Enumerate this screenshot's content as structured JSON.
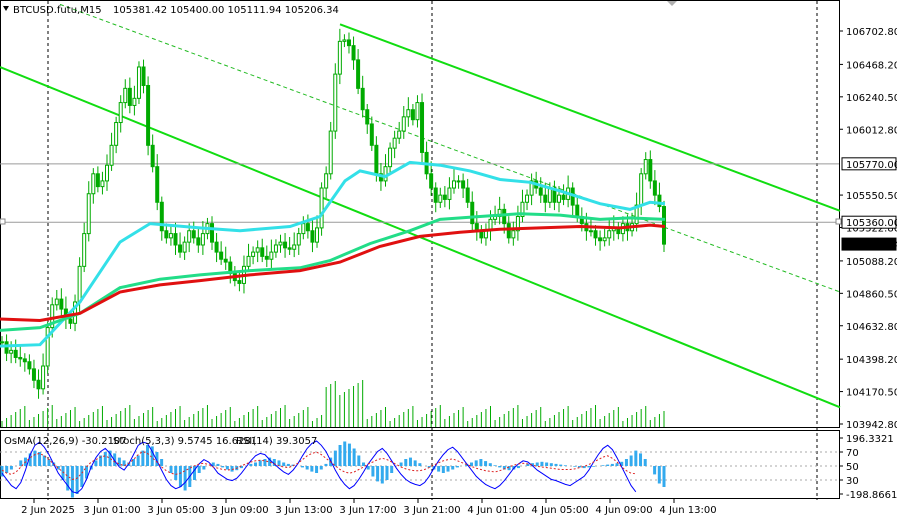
{
  "header": {
    "symbol": "BTCUSD.futu,M15",
    "ohlc": "105381.42 105400.00 105111.94 105206.34",
    "osma_label": "OsMA(12,26,9) -30.2107",
    "stoch_label": "Stoch(5,3,3) 9.5745 16.6281",
    "rsi_label": "RSI(14) 39.3057"
  },
  "colors": {
    "bg": "#ffffff",
    "candle": "#00aa00",
    "ma_fast": "#33e0e8",
    "ma_mid": "#22dd88",
    "ma_slow": "#e01010",
    "channel": "#11dd11",
    "osma": "#33aaee",
    "stoch": "#0000ff",
    "rsi": "#dd2222",
    "grid": "#000000"
  },
  "price_axis": {
    "ticks": [
      "106702.80",
      "106468.20",
      "106240.50",
      "106012.80",
      "105550.50",
      "105322.80",
      "105088.20",
      "104860.50",
      "104632.80",
      "104398.20",
      "104170.50",
      "103942.80"
    ],
    "labels": [
      {
        "text": "105770.00",
        "style": "line",
        "value": 105770.0
      },
      {
        "text": "105360.00",
        "style": "line",
        "value": 105360.0
      },
      {
        "text": "105206.34",
        "style": "current",
        "value": 105206.34
      }
    ]
  },
  "indicator_axis": {
    "ticks": [
      "196.3321",
      "70",
      "50",
      "30",
      "-198.8661"
    ]
  },
  "time_axis": {
    "ticks": [
      "2 Jun 2025",
      "3 Jun 01:00",
      "3 Jun 05:00",
      "3 Jun 09:00",
      "3 Jun 13:00",
      "3 Jun 17:00",
      "3 Jun 21:00",
      "4 Jun 01:00",
      "4 Jun 05:00",
      "4 Jun 09:00",
      "4 Jun 13:00"
    ]
  },
  "chart_data": {
    "type": "candlestick",
    "title": "BTCUSD.futu,M15",
    "ylim": [
      103900,
      106780
    ],
    "grid": false,
    "series": [
      {
        "name": "BTCUSD.futu,M15 (close)",
        "kind": "price",
        "values": [
          104520,
          104440,
          104460,
          104410,
          104400,
          104380,
          104330,
          104250,
          104190,
          104350,
          104620,
          104780,
          104820,
          104750,
          104680,
          104650,
          104800,
          105050,
          105280,
          105560,
          105700,
          105610,
          105650,
          105760,
          105900,
          106060,
          106200,
          106300,
          106180,
          106230,
          106450,
          106320,
          105900,
          105750,
          105500,
          105300,
          105250,
          105280,
          105200,
          105150,
          105220,
          105300,
          105250,
          105200,
          105280,
          105350,
          105220,
          105150,
          105100,
          105080,
          105000,
          104950,
          104930,
          105050,
          105120,
          105150,
          105180,
          105120,
          105100,
          105150,
          105200,
          105220,
          105180,
          105170,
          105200,
          105280,
          105350,
          105300,
          105220,
          105320,
          105600,
          105700,
          106000,
          106400,
          106630,
          106640,
          106600,
          106500,
          106300,
          106150,
          106050,
          105900,
          105700,
          105650,
          105750,
          105880,
          105950,
          106000,
          106100,
          106150,
          106080,
          106200,
          105850,
          105700,
          105600,
          105500,
          105550,
          105520,
          105600,
          105650,
          105650,
          105600,
          105500,
          105350,
          105300,
          105250,
          105300,
          105380,
          105400,
          105450,
          105350,
          105250,
          105300,
          105400,
          105500,
          105550,
          105650,
          105600,
          105550,
          105500,
          105600,
          105500,
          105550,
          105520,
          105600,
          105480,
          105400,
          105350,
          105300,
          105300,
          105250,
          105230,
          105250,
          105300,
          105320,
          105280,
          105350,
          105300,
          105350,
          105480,
          105700,
          105800,
          105650,
          105550,
          105470,
          105206
        ]
      },
      {
        "name": "MA fast",
        "kind": "ma",
        "points": [
          [
            0,
            104490
          ],
          [
            40,
            104500
          ],
          [
            80,
            104800
          ],
          [
            120,
            105220
          ],
          [
            150,
            105350
          ],
          [
            200,
            105320
          ],
          [
            240,
            105300
          ],
          [
            290,
            105330
          ],
          [
            320,
            105400
          ],
          [
            345,
            105650
          ],
          [
            360,
            105720
          ],
          [
            385,
            105680
          ],
          [
            410,
            105780
          ],
          [
            440,
            105760
          ],
          [
            470,
            105720
          ],
          [
            500,
            105660
          ],
          [
            530,
            105640
          ],
          [
            560,
            105580
          ],
          [
            600,
            105490
          ],
          [
            630,
            105450
          ],
          [
            650,
            105500
          ],
          [
            665,
            105490
          ]
        ]
      },
      {
        "name": "MA mid",
        "kind": "ma",
        "points": [
          [
            0,
            104600
          ],
          [
            40,
            104620
          ],
          [
            80,
            104720
          ],
          [
            120,
            104900
          ],
          [
            160,
            104960
          ],
          [
            200,
            104990
          ],
          [
            250,
            105020
          ],
          [
            300,
            105040
          ],
          [
            330,
            105090
          ],
          [
            370,
            105210
          ],
          [
            410,
            105300
          ],
          [
            440,
            105380
          ],
          [
            480,
            105400
          ],
          [
            520,
            105420
          ],
          [
            560,
            105410
          ],
          [
            600,
            105380
          ],
          [
            630,
            105390
          ],
          [
            665,
            105380
          ]
        ]
      },
      {
        "name": "MA slow",
        "kind": "ma",
        "points": [
          [
            0,
            104680
          ],
          [
            40,
            104670
          ],
          [
            80,
            104720
          ],
          [
            120,
            104870
          ],
          [
            160,
            104920
          ],
          [
            200,
            104950
          ],
          [
            250,
            104990
          ],
          [
            300,
            105020
          ],
          [
            340,
            105080
          ],
          [
            380,
            105190
          ],
          [
            420,
            105260
          ],
          [
            460,
            105290
          ],
          [
            500,
            105310
          ],
          [
            540,
            105320
          ],
          [
            580,
            105330
          ],
          [
            620,
            105320
          ],
          [
            650,
            105340
          ],
          [
            665,
            105330
          ]
        ]
      }
    ],
    "channels": [
      {
        "name": "upper channel",
        "from": [
          340,
          106750
        ],
        "to": [
          840,
          105440
        ]
      },
      {
        "name": "lower channel",
        "from": [
          0,
          106450
        ],
        "to": [
          840,
          104060
        ]
      },
      {
        "name": "mid line",
        "from": [
          60,
          106890
        ],
        "to": [
          840,
          104870
        ]
      }
    ],
    "levels": [
      105770.0,
      105360.0
    ],
    "current_price": 105206.34,
    "subchart": {
      "osma": [
        -15,
        -10,
        -5,
        0,
        8,
        12,
        18,
        22,
        20,
        15,
        10,
        5,
        -5,
        -20,
        -35,
        -45,
        -40,
        -30,
        -18,
        -5,
        8,
        15,
        20,
        22,
        18,
        12,
        8,
        5,
        10,
        15,
        22,
        30,
        28,
        20,
        10,
        0,
        -10,
        -20,
        -30,
        -35,
        -30,
        -20,
        -10,
        -5,
        0,
        5,
        3,
        -2,
        -5,
        -8,
        -6,
        -3,
        0,
        3,
        5,
        8,
        10,
        12,
        10,
        8,
        5,
        3,
        2,
        0,
        -2,
        -5,
        -8,
        -10,
        -5,
        3,
        12,
        22,
        30,
        35,
        32,
        25,
        15,
        5,
        -5,
        -15,
        -22,
        -25,
        -20,
        -10,
        0,
        5,
        10,
        12,
        8,
        4,
        0,
        -2,
        -5,
        -8,
        -10,
        -8,
        -5,
        -2,
        0,
        3,
        5,
        8,
        10,
        7,
        4,
        1,
        -2,
        -5,
        -6,
        -5,
        -3,
        0,
        3,
        4,
        5,
        6,
        5,
        4,
        3,
        2,
        1,
        0,
        -1,
        -2,
        -3,
        -2,
        -1,
        0,
        1,
        2,
        3,
        4,
        6,
        10,
        15,
        22,
        18,
        10,
        0,
        -12,
        -25,
        -30
      ],
      "stoch": [
        40,
        30,
        20,
        15,
        25,
        45,
        70,
        85,
        90,
        82,
        70,
        55,
        40,
        30,
        20,
        10,
        8,
        15,
        30,
        50,
        65,
        75,
        80,
        72,
        60,
        50,
        45,
        55,
        70,
        85,
        90,
        88,
        75,
        60,
        45,
        30,
        20,
        15,
        18,
        25,
        35,
        45,
        55,
        62,
        58,
        50,
        40,
        35,
        30,
        28,
        32,
        40,
        50,
        60,
        68,
        72,
        70,
        62,
        55,
        48,
        42,
        38,
        45,
        55,
        68,
        80,
        88,
        92,
        85,
        75,
        60,
        45,
        32,
        22,
        15,
        20,
        30,
        42,
        55,
        65,
        75,
        80,
        72,
        60,
        48,
        38,
        30,
        25,
        22,
        20,
        25,
        35,
        48,
        60,
        70,
        78,
        82,
        75,
        65,
        55,
        45,
        35,
        28,
        22,
        18,
        15,
        20,
        28,
        38,
        48,
        55,
        60,
        58,
        52,
        45,
        40,
        35,
        30,
        28,
        25,
        22,
        20,
        25,
        30,
        35,
        45,
        58,
        70,
        80,
        85,
        78,
        65,
        50,
        35,
        20,
        10
      ],
      "rsi": [
        45,
        40,
        38,
        42,
        50,
        58,
        65,
        70,
        72,
        68,
        62,
        55,
        48,
        42,
        35,
        30,
        32,
        40,
        50,
        58,
        62,
        66,
        68,
        64,
        58,
        55,
        52,
        56,
        62,
        70,
        75,
        72,
        65,
        58,
        50,
        44,
        40,
        38,
        40,
        44,
        48,
        52,
        55,
        56,
        54,
        50,
        48,
        46,
        45,
        46,
        48,
        52,
        55,
        58,
        60,
        61,
        60,
        58,
        55,
        52,
        50,
        49,
        52,
        56,
        62,
        68,
        72,
        74,
        70,
        64,
        58,
        52,
        46,
        42,
        40,
        42,
        46,
        50,
        55,
        58,
        62,
        64,
        62,
        58,
        54,
        50,
        47,
        45,
        44,
        44,
        46,
        49,
        53,
        57,
        60,
        62,
        63,
        60,
        57,
        54,
        51,
        48,
        46,
        44,
        43,
        42,
        44,
        47,
        50,
        53,
        55,
        56,
        55,
        53,
        51,
        50,
        49,
        48,
        47,
        46,
        46,
        46,
        47,
        49,
        51,
        54,
        58,
        62,
        66,
        68,
        64,
        58,
        50,
        44,
        40,
        39
      ]
    }
  }
}
